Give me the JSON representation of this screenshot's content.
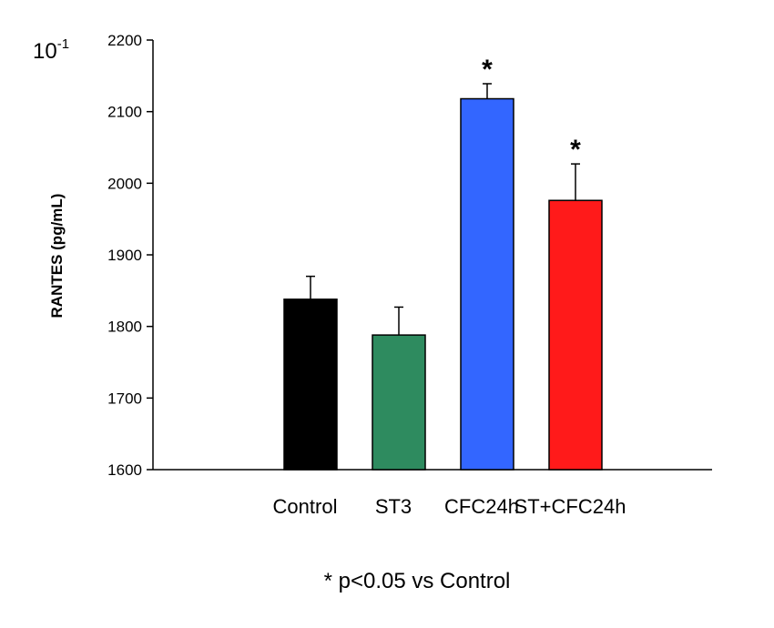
{
  "chart_data": {
    "type": "bar",
    "categories": [
      "Control",
      "ST3",
      "CFC24h",
      "ST+CFC24h"
    ],
    "values": [
      1838,
      1788,
      2118,
      1976
    ],
    "errors": [
      32,
      39,
      21,
      51
    ],
    "significant": [
      false,
      false,
      true,
      true
    ],
    "significance_mark": "*",
    "colors": [
      "#000000",
      "#2e8b5f",
      "#3366ff",
      "#ff1a1a"
    ],
    "ylabel": "RANTES (pg/mL)",
    "ylim": [
      1600,
      2200
    ],
    "yticks": [
      "1600",
      "1700",
      "1800",
      "1900",
      "2000",
      "2100",
      "2200"
    ],
    "scale_base": "10",
    "scale_exponent": "-1",
    "grid": false,
    "footnote": "* p<0.05 vs Control"
  }
}
